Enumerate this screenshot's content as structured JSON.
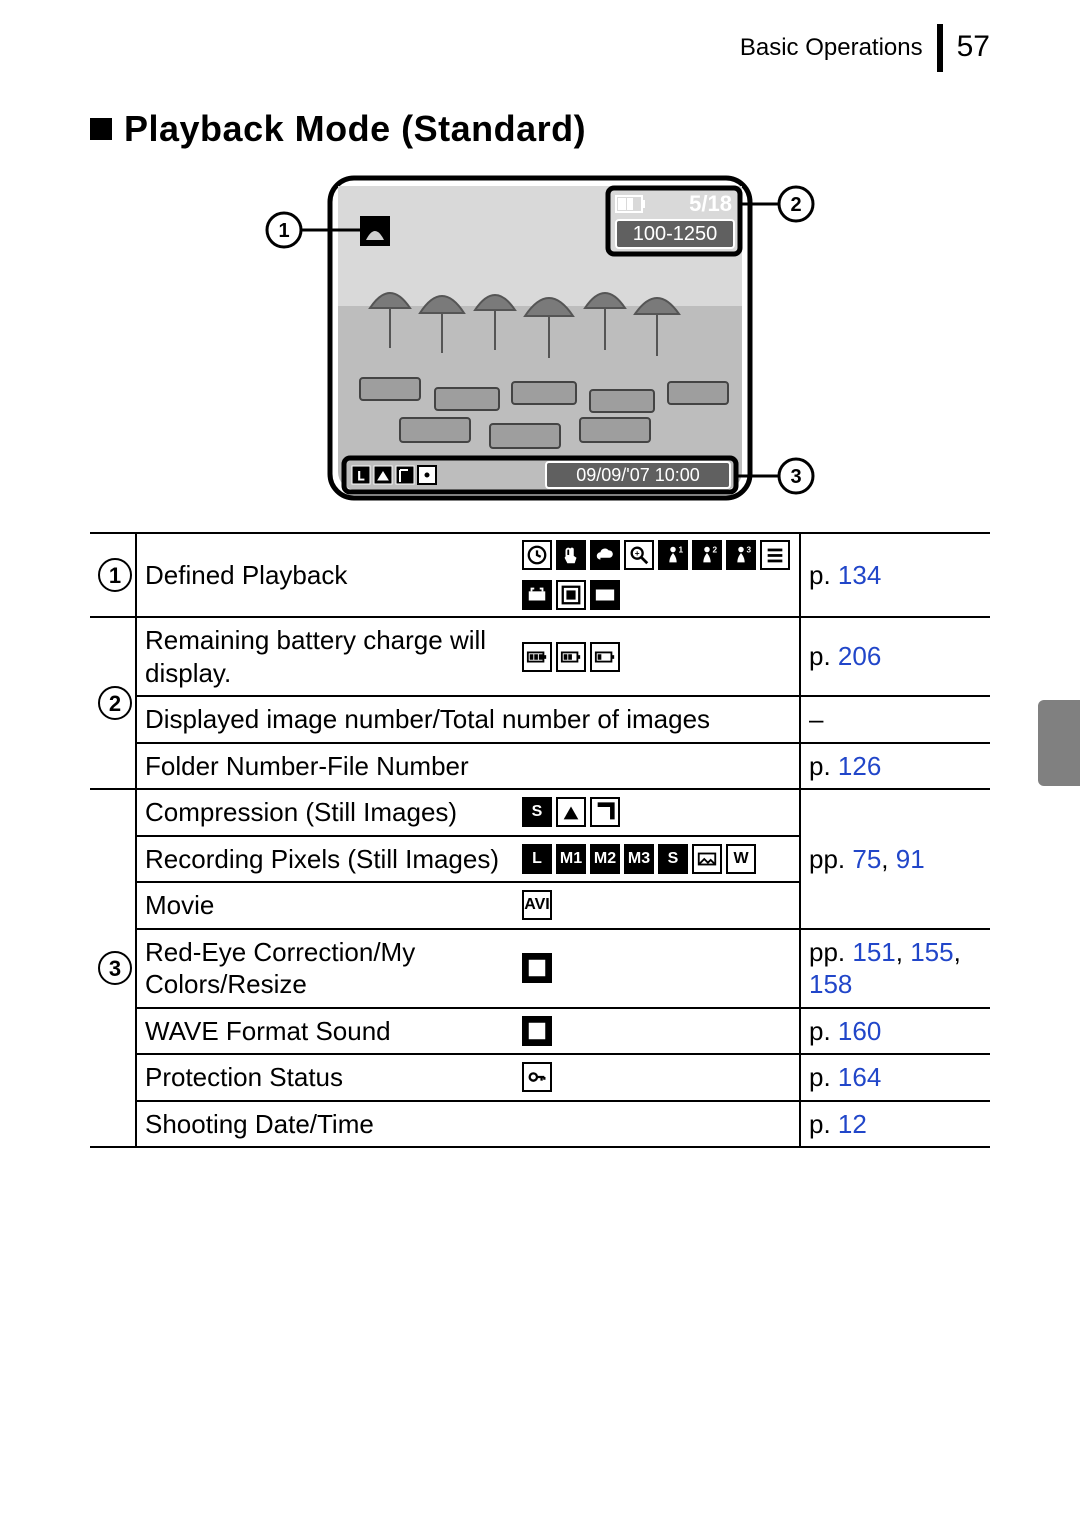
{
  "header": {
    "section": "Basic Operations",
    "page_number": "57"
  },
  "title": "Playback Mode (Standard)",
  "diagram": {
    "callouts": {
      "c1": "1",
      "c2": "2",
      "c3": "3"
    },
    "overlay": {
      "image_counter": "5/18",
      "folder_file": "100-1250",
      "datetime": "09/09/'07   10:00"
    }
  },
  "table": {
    "rows": [
      {
        "num": "1",
        "rowspan_num": 1,
        "label": "Defined Playback",
        "span_label_icons": false,
        "icons": "defined_playback",
        "page": [
          {
            "t": "p. ",
            "c": "black"
          },
          {
            "t": "134",
            "c": "link"
          }
        ]
      },
      {
        "num": "2",
        "rowspan_num": 3,
        "label": "Remaining battery charge will display.",
        "span_label_icons": false,
        "icons": "battery",
        "page": [
          {
            "t": "p. ",
            "c": "black"
          },
          {
            "t": "206",
            "c": "link"
          }
        ]
      },
      {
        "label": "Displayed image number/Total number of images",
        "span_label_icons": true,
        "page": [
          {
            "t": "–",
            "c": "black"
          }
        ]
      },
      {
        "label": "Folder Number-File Number",
        "span_label_icons": true,
        "page": [
          {
            "t": "p. ",
            "c": "black"
          },
          {
            "t": "126",
            "c": "link"
          }
        ]
      },
      {
        "num": "3",
        "rowspan_num": 7,
        "label": "Compression (Still Images)",
        "span_label_icons": false,
        "icons": "compression",
        "rowspan_page": 3,
        "page": [
          {
            "t": "pp. ",
            "c": "black"
          },
          {
            "t": "75",
            "c": "link"
          },
          {
            "t": ", ",
            "c": "black"
          },
          {
            "t": "91",
            "c": "link"
          }
        ]
      },
      {
        "label": "Recording Pixels (Still Images)",
        "span_label_icons": false,
        "icons": "pixels"
      },
      {
        "label": "Movie",
        "span_label_icons": false,
        "icons": "movie"
      },
      {
        "label": "Red-Eye Correction/My Colors/Resize",
        "span_label_icons": false,
        "icons": "redeye",
        "page": [
          {
            "t": "pp. ",
            "c": "black"
          },
          {
            "t": "151",
            "c": "link"
          },
          {
            "t": ", ",
            "c": "black"
          },
          {
            "t": "155",
            "c": "link"
          },
          {
            "t": ", ",
            "c": "black"
          },
          {
            "t": "158",
            "c": "link"
          }
        ]
      },
      {
        "label": "WAVE Format Sound",
        "span_label_icons": false,
        "icons": "wave",
        "page": [
          {
            "t": "p. ",
            "c": "black"
          },
          {
            "t": "160",
            "c": "link"
          }
        ]
      },
      {
        "label": "Protection Status",
        "span_label_icons": false,
        "icons": "protect",
        "page": [
          {
            "t": "p. ",
            "c": "black"
          },
          {
            "t": "164",
            "c": "link"
          }
        ]
      },
      {
        "label": "Shooting Date/Time",
        "span_label_icons": true,
        "page": [
          {
            "t": "p. ",
            "c": "black"
          },
          {
            "t": "12",
            "c": "link"
          }
        ]
      }
    ]
  },
  "icons": {
    "defined_playback": [
      {
        "bg": "wh",
        "sym": "clock"
      },
      {
        "bg": "bk",
        "sym": "hand"
      },
      {
        "bg": "bk",
        "sym": "cloud"
      },
      {
        "bg": "wh",
        "sym": "mag"
      },
      {
        "bg": "bk",
        "sym": "p1"
      },
      {
        "bg": "bk",
        "sym": "p2"
      },
      {
        "bg": "bk",
        "sym": "p3"
      },
      {
        "bg": "wh",
        "sym": "list"
      },
      {
        "bg": "bk",
        "sym": "anim"
      },
      {
        "bg": "wh",
        "sym": "sel"
      },
      {
        "bg": "bk",
        "sym": "film"
      }
    ],
    "battery": [
      {
        "bg": "wh",
        "sym": "bat3"
      },
      {
        "bg": "wh",
        "sym": "bat2"
      },
      {
        "bg": "wh",
        "sym": "bat1"
      }
    ],
    "compression": [
      {
        "bg": "bk",
        "txt": "S"
      },
      {
        "bg": "wh",
        "sym": "tri"
      },
      {
        "bg": "wh",
        "sym": "corner"
      }
    ],
    "pixels": [
      {
        "bg": "bk",
        "txt": "L"
      },
      {
        "bg": "bk",
        "txt": "M1"
      },
      {
        "bg": "bk",
        "txt": "M2"
      },
      {
        "bg": "bk",
        "txt": "M3"
      },
      {
        "bg": "bk",
        "txt": "S"
      },
      {
        "bg": "wh",
        "sym": "postcard"
      },
      {
        "bg": "wh",
        "txt": "W"
      }
    ],
    "movie": [
      {
        "bg": "wh",
        "txt": "AVI"
      }
    ],
    "redeye": [
      {
        "bg": "bk",
        "sym": "check"
      }
    ],
    "wave": [
      {
        "bg": "bk",
        "sym": "wave"
      }
    ],
    "protect": [
      {
        "bg": "wh",
        "sym": "key"
      }
    ]
  },
  "colors": {
    "link": "#2146c9",
    "black": "#000000"
  }
}
